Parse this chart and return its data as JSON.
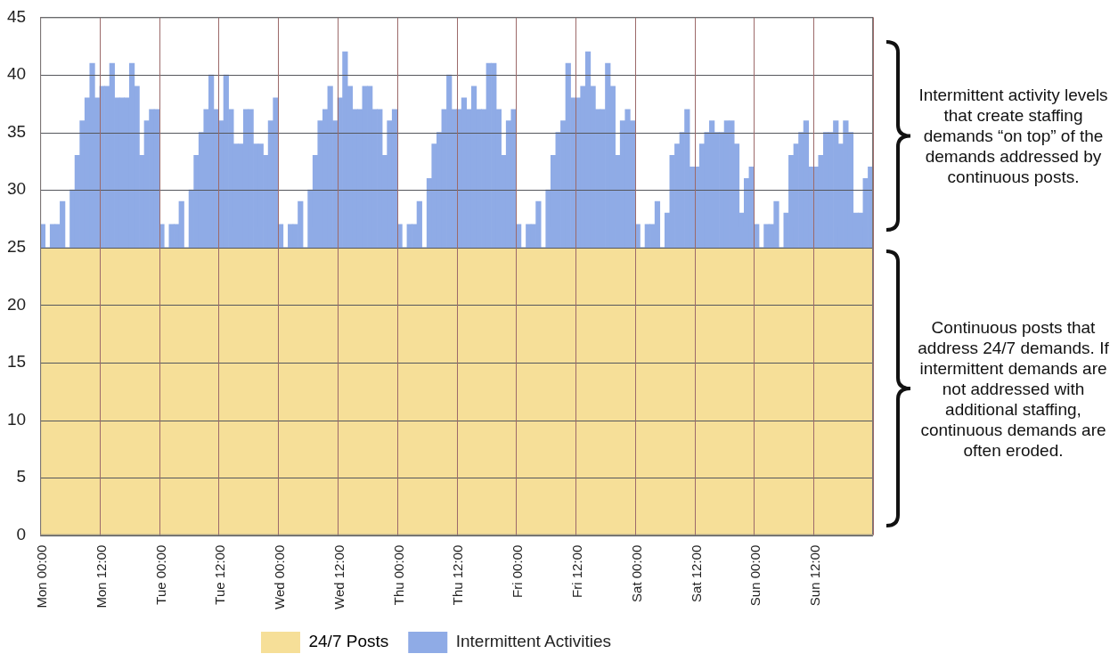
{
  "chart_data": {
    "type": "bar",
    "grid": true,
    "legend": "bottom",
    "bands": [
      {
        "axis": "y",
        "from": 0,
        "to": 25,
        "label": "24/7 Posts",
        "color": "#f6df98"
      }
    ],
    "categories": [
      "Mon 00:00",
      null,
      null,
      null,
      null,
      null,
      null,
      null,
      null,
      null,
      null,
      null,
      "Mon 12:00",
      null,
      null,
      null,
      null,
      null,
      null,
      null,
      null,
      null,
      null,
      null,
      "Tue 00:00",
      null,
      null,
      null,
      null,
      null,
      null,
      null,
      null,
      null,
      null,
      null,
      "Tue 12:00",
      null,
      null,
      null,
      null,
      null,
      null,
      null,
      null,
      null,
      null,
      null,
      "Wed 00:00",
      null,
      null,
      null,
      null,
      null,
      null,
      null,
      null,
      null,
      null,
      null,
      "Wed 12:00",
      null,
      null,
      null,
      null,
      null,
      null,
      null,
      null,
      null,
      null,
      null,
      "Thu 00:00",
      null,
      null,
      null,
      null,
      null,
      null,
      null,
      null,
      null,
      null,
      null,
      "Thu 12:00",
      null,
      null,
      null,
      null,
      null,
      null,
      null,
      null,
      null,
      null,
      null,
      "Fri 00:00",
      null,
      null,
      null,
      null,
      null,
      null,
      null,
      null,
      null,
      null,
      null,
      "Fri 12:00",
      null,
      null,
      null,
      null,
      null,
      null,
      null,
      null,
      null,
      null,
      null,
      "Sat 00:00",
      null,
      null,
      null,
      null,
      null,
      null,
      null,
      null,
      null,
      null,
      null,
      "Sat 12:00",
      null,
      null,
      null,
      null,
      null,
      null,
      null,
      null,
      null,
      null,
      null,
      "Sun 00:00",
      null,
      null,
      null,
      null,
      null,
      null,
      null,
      null,
      null,
      null,
      null,
      "Sun 12:00",
      null,
      null,
      null,
      null,
      null,
      null,
      null,
      null,
      null,
      null,
      null
    ],
    "ylim": [
      0,
      45
    ],
    "yticks": [
      0,
      5,
      10,
      15,
      20,
      25,
      30,
      35,
      40,
      45
    ],
    "series": [
      {
        "name": "Intermittent Activities",
        "color": "#8fabe6",
        "base": [
          25,
          25,
          25,
          25,
          25,
          25,
          25,
          25,
          25,
          25,
          25,
          25,
          25,
          25,
          25,
          25,
          25,
          25,
          25,
          25,
          25,
          25,
          25,
          25,
          25,
          25,
          25,
          25,
          25,
          25,
          25,
          25,
          25,
          25,
          25,
          25,
          25,
          25,
          25,
          25,
          25,
          25,
          25,
          25,
          25,
          25,
          25,
          25,
          25,
          25,
          25,
          25,
          25,
          25,
          25,
          25,
          25,
          25,
          25,
          25,
          25,
          25,
          25,
          25,
          25,
          25,
          25,
          25,
          25,
          25,
          25,
          25,
          25,
          25,
          25,
          25,
          25,
          25,
          25,
          25,
          25,
          25,
          25,
          25,
          25,
          25,
          25,
          25,
          25,
          25,
          25,
          25,
          25,
          25,
          25,
          25,
          25,
          25,
          25,
          25,
          25,
          25,
          25,
          25,
          25,
          25,
          25,
          25,
          25,
          25,
          25,
          25,
          25,
          25,
          25,
          25,
          25,
          25,
          25,
          25,
          25,
          25,
          25,
          25,
          25,
          25,
          25,
          25,
          25,
          25,
          25,
          25,
          25,
          25,
          25,
          25,
          25,
          25,
          25,
          25,
          25,
          25,
          25,
          25,
          25,
          25,
          25,
          25,
          25,
          25,
          25,
          25,
          25,
          25,
          25,
          25,
          25,
          25,
          25,
          25,
          25,
          25,
          25,
          25,
          25,
          25,
          25,
          25
        ],
        "values": [
          2,
          0,
          2,
          2,
          4,
          0,
          5,
          8,
          11,
          13,
          16,
          13,
          14,
          14,
          16,
          13,
          13,
          13,
          16,
          14,
          8,
          11,
          12,
          12,
          2,
          0,
          2,
          2,
          4,
          0,
          5,
          8,
          10,
          12,
          15,
          12,
          11,
          15,
          12,
          9,
          9,
          12,
          12,
          9,
          9,
          8,
          11,
          13,
          2,
          0,
          2,
          2,
          4,
          0,
          5,
          8,
          11,
          12,
          14,
          11,
          13,
          17,
          14,
          12,
          12,
          14,
          14,
          12,
          12,
          8,
          11,
          12,
          2,
          0,
          2,
          2,
          4,
          0,
          6,
          9,
          10,
          12,
          15,
          12,
          12,
          13,
          12,
          14,
          12,
          12,
          16,
          16,
          12,
          8,
          11,
          12,
          2,
          0,
          2,
          2,
          4,
          0,
          5,
          8,
          10,
          11,
          16,
          13,
          13,
          14,
          17,
          14,
          12,
          12,
          16,
          14,
          8,
          11,
          12,
          11,
          2,
          0,
          2,
          2,
          4,
          0,
          3,
          8,
          9,
          10,
          12,
          7,
          7,
          9,
          10,
          11,
          10,
          10,
          11,
          11,
          9,
          3,
          6,
          7,
          2,
          0,
          2,
          2,
          4,
          0,
          3,
          8,
          9,
          10,
          11,
          7,
          7,
          8,
          10,
          10,
          11,
          9,
          11,
          10,
          3,
          3,
          6,
          7
        ]
      }
    ],
    "annotations": [
      "Intermittent activity levels that create staffing demands “on top” of the demands addressed by continuous posts.",
      "Continuous posts that address 24/7 demands. If intermittent demands are not addressed with additional staffing, continuous demands are often eroded."
    ]
  }
}
